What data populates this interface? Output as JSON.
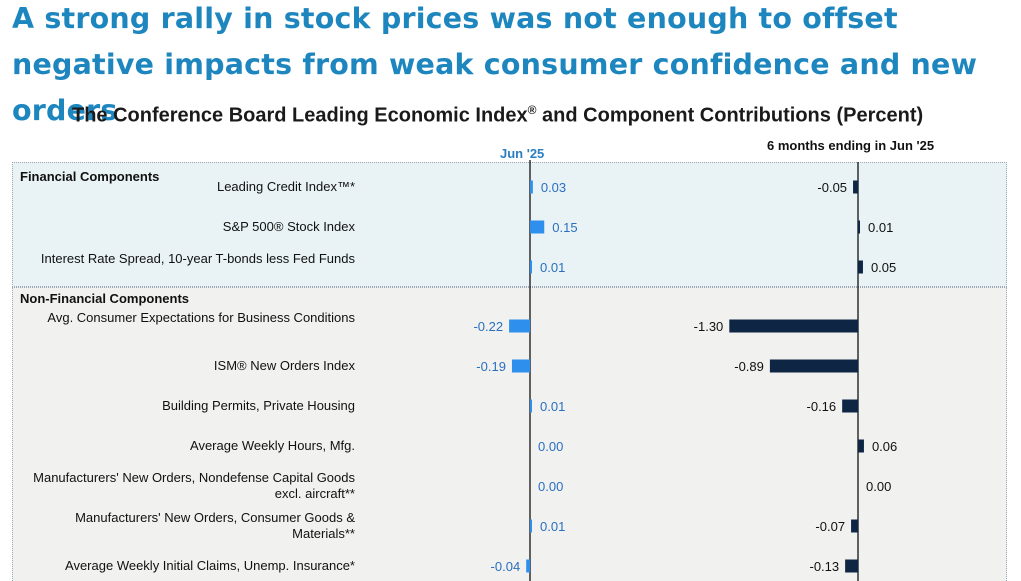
{
  "headline": "A strong rally in stock prices was not enough to offset negative impacts from weak consumer confidence and new orders",
  "chart_data": {
    "type": "bar",
    "title": "The Conference Board Leading Economic Index",
    "title_mark": "®",
    "title_suffix": " and Component Contributions (Percent)",
    "orientation": "horizontal",
    "sections": [
      {
        "name": "Financial Components",
        "rows": [
          0,
          1,
          2
        ]
      },
      {
        "name": "Non-Financial Components",
        "rows": [
          3,
          4,
          5,
          6,
          7,
          8,
          9
        ]
      }
    ],
    "categories": [
      "Leading Credit Index™*",
      "S&P 500® Stock Index",
      "Interest Rate Spread, 10-year T-bonds less Fed Funds",
      "Avg. Consumer Expectations for Business Conditions",
      "ISM® New Orders Index",
      "Building Permits, Private Housing",
      "Average Weekly Hours, Mfg.",
      "Manufacturers' New Orders, Nondefense Capital Goods excl. aircraft**",
      "Manufacturers' New Orders, Consumer Goods & Materials**",
      "Average Weekly Initial Claims, Unemp. Insurance*"
    ],
    "series": [
      {
        "name": "Jun  '25",
        "values": [
          0.03,
          0.15,
          0.01,
          -0.22,
          -0.19,
          0.01,
          0.0,
          0.0,
          0.01,
          -0.04
        ],
        "labels": [
          "0.03",
          "0.15",
          "0.01",
          "-0.22",
          "-0.19",
          "0.01",
          "0.00",
          "0.00",
          "0.01",
          "-0.04"
        ],
        "color": "#2f8fec"
      },
      {
        "name": "6 months ending in Jun  '25",
        "values": [
          -0.05,
          0.01,
          0.05,
          -1.3,
          -0.89,
          -0.16,
          0.06,
          0.0,
          -0.07,
          -0.13
        ],
        "labels": [
          "-0.05",
          "0.01",
          "0.05",
          "-1.30",
          "-0.89",
          "-0.16",
          "0.06",
          "0.00",
          "-0.07",
          "-0.13"
        ],
        "color": "#0f2544"
      }
    ],
    "label_color_left": "#2a6fbf",
    "label_color_right": "#111111"
  }
}
